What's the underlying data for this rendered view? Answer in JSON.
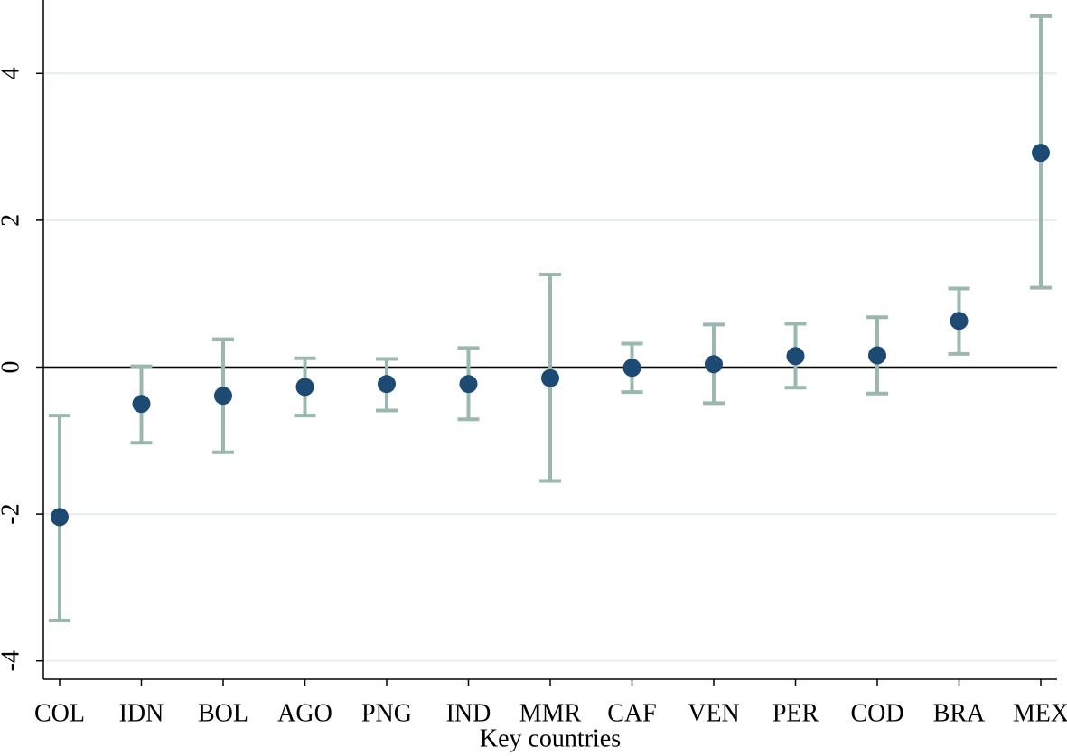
{
  "chart_data": {
    "type": "errorbar",
    "x_label": "Key countries",
    "categories": [
      "COL",
      "IDN",
      "BOL",
      "AGO",
      "PNG",
      "IND",
      "MMR",
      "CAF",
      "VEN",
      "PER",
      "COD",
      "BRA",
      "MEX"
    ],
    "values": [
      -2.04,
      -0.5,
      -0.39,
      -0.27,
      -0.23,
      -0.23,
      -0.15,
      -0.01,
      0.04,
      0.15,
      0.16,
      0.63,
      2.92
    ],
    "lower": [
      -3.45,
      -1.03,
      -1.16,
      -0.66,
      -0.59,
      -0.71,
      -1.55,
      -0.34,
      -0.49,
      -0.28,
      -0.36,
      0.18,
      1.08
    ],
    "upper": [
      -0.66,
      0.01,
      0.38,
      0.12,
      0.11,
      0.26,
      1.26,
      0.32,
      0.58,
      0.59,
      0.68,
      1.07,
      4.78
    ],
    "color": "#1c4a73",
    "error_color": "#9ab8b0",
    "ylim": [
      -4.25,
      5
    ],
    "yticks": [
      -4,
      -2,
      0,
      2,
      4
    ],
    "grid": true,
    "hline": 0
  }
}
